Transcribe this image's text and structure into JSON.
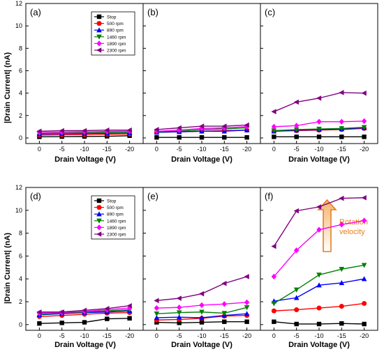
{
  "figure": {
    "xlabel": "Drain Voltage (V)",
    "ylabel": "|Drain Current| (nA)",
    "yticks": [
      "0",
      "2",
      "4",
      "6",
      "8",
      "10",
      "12"
    ],
    "xticks": [
      "0",
      "-5",
      "-10",
      "-15",
      "-20"
    ],
    "legend_entries": [
      "Stop",
      "500 rpm",
      "890 rpm",
      "1460 rpm",
      "1890 rpm",
      "2300 rpm"
    ],
    "annotation": {
      "line1": "Rotation",
      "line2": "velocity",
      "color": "#e67e22"
    }
  },
  "series_styles": [
    {
      "name": "Stop",
      "color": "#000000",
      "marker": "square"
    },
    {
      "name": "500 rpm",
      "color": "#ff0000",
      "marker": "circle"
    },
    {
      "name": "890 rpm",
      "color": "#0000ff",
      "marker": "triangle-up"
    },
    {
      "name": "1460 rpm",
      "color": "#008000",
      "marker": "triangle-down"
    },
    {
      "name": "1890 rpm",
      "color": "#ff00ff",
      "marker": "diamond"
    },
    {
      "name": "2300 rpm",
      "color": "#800080",
      "marker": "triangle-left"
    }
  ],
  "chart_data": [
    {
      "type": "line",
      "panel": "(a)",
      "x": [
        0,
        -5,
        -10,
        -15,
        -20
      ],
      "ylim": [
        -0.5,
        12
      ],
      "legend": "top-right",
      "series": [
        {
          "name": "Stop",
          "values": [
            0.1,
            0.12,
            0.13,
            0.15,
            0.2
          ]
        },
        {
          "name": "500 rpm",
          "values": [
            0.25,
            0.28,
            0.3,
            0.33,
            0.35
          ]
        },
        {
          "name": "890 rpm",
          "values": [
            0.35,
            0.38,
            0.4,
            0.42,
            0.45
          ]
        },
        {
          "name": "1460 rpm",
          "values": [
            0.4,
            0.43,
            0.45,
            0.48,
            0.5
          ]
        },
        {
          "name": "1890 rpm",
          "values": [
            0.5,
            0.52,
            0.55,
            0.58,
            0.6
          ]
        },
        {
          "name": "2300 rpm",
          "values": [
            0.6,
            0.65,
            0.65,
            0.7,
            0.7
          ]
        }
      ]
    },
    {
      "type": "line",
      "panel": "(b)",
      "x": [
        0,
        -5,
        -10,
        -15,
        -20
      ],
      "ylim": [
        -0.5,
        12
      ],
      "series": [
        {
          "name": "Stop",
          "values": [
            0.05,
            0.05,
            0.05,
            0.05,
            0.05
          ]
        },
        {
          "name": "500 rpm",
          "values": [
            0.5,
            0.55,
            0.6,
            0.65,
            0.7
          ]
        },
        {
          "name": "890 rpm",
          "values": [
            0.5,
            0.55,
            0.6,
            0.6,
            0.7
          ]
        },
        {
          "name": "1460 rpm",
          "values": [
            0.55,
            0.6,
            0.75,
            0.8,
            0.9
          ]
        },
        {
          "name": "1890 rpm",
          "values": [
            0.6,
            0.7,
            0.85,
            0.9,
            1.0
          ]
        },
        {
          "name": "2300 rpm",
          "values": [
            0.75,
            0.9,
            1.05,
            1.05,
            1.15
          ]
        }
      ]
    },
    {
      "type": "line",
      "panel": "(c)",
      "x": [
        0,
        -5,
        -10,
        -15,
        -20
      ],
      "ylim": [
        -0.5,
        12
      ],
      "series": [
        {
          "name": "Stop",
          "values": [
            0.1,
            0.1,
            0.1,
            0.1,
            0.1
          ]
        },
        {
          "name": "500 rpm",
          "values": [
            0.6,
            0.65,
            0.7,
            0.75,
            0.85
          ]
        },
        {
          "name": "890 rpm",
          "values": [
            0.6,
            0.7,
            0.75,
            0.8,
            0.9
          ]
        },
        {
          "name": "1460 rpm",
          "values": [
            0.65,
            0.75,
            0.8,
            0.85,
            0.95
          ]
        },
        {
          "name": "1890 rpm",
          "values": [
            1.0,
            1.1,
            1.45,
            1.45,
            1.5
          ]
        },
        {
          "name": "2300 rpm",
          "values": [
            2.35,
            3.2,
            3.55,
            4.05,
            4.0
          ]
        }
      ]
    },
    {
      "type": "line",
      "panel": "(d)",
      "x": [
        0,
        -5,
        -10,
        -15,
        -20
      ],
      "ylim": [
        -0.5,
        12
      ],
      "legend": "top-right",
      "series": [
        {
          "name": "Stop",
          "values": [
            0.1,
            0.15,
            0.2,
            0.5,
            0.55
          ]
        },
        {
          "name": "500 rpm",
          "values": [
            0.7,
            0.8,
            0.9,
            1.0,
            1.05
          ]
        },
        {
          "name": "890 rpm",
          "values": [
            0.85,
            0.95,
            1.05,
            1.1,
            1.2
          ]
        },
        {
          "name": "1460 rpm",
          "values": [
            0.9,
            1.0,
            1.1,
            1.2,
            1.3
          ]
        },
        {
          "name": "1890 rpm",
          "values": [
            1.0,
            1.05,
            1.15,
            1.3,
            1.45
          ]
        },
        {
          "name": "2300 rpm",
          "values": [
            1.1,
            1.1,
            1.25,
            1.4,
            1.65
          ]
        }
      ]
    },
    {
      "type": "line",
      "panel": "(e)",
      "x": [
        0,
        -5,
        -10,
        -15,
        -20
      ],
      "ylim": [
        -0.5,
        12
      ],
      "series": [
        {
          "name": "Stop",
          "values": [
            0.2,
            0.15,
            0.2,
            0.25,
            0.25
          ]
        },
        {
          "name": "500 rpm",
          "values": [
            0.4,
            0.45,
            0.55,
            0.75,
            0.8
          ]
        },
        {
          "name": "890 rpm",
          "values": [
            0.6,
            0.65,
            0.6,
            0.8,
            0.95
          ]
        },
        {
          "name": "1460 rpm",
          "values": [
            0.95,
            1.05,
            1.1,
            1.0,
            1.5
          ]
        },
        {
          "name": "1890 rpm",
          "values": [
            1.45,
            1.5,
            1.7,
            1.8,
            1.95
          ]
        },
        {
          "name": "2300 rpm",
          "values": [
            2.1,
            2.3,
            2.7,
            3.6,
            4.2
          ]
        }
      ]
    },
    {
      "type": "line",
      "panel": "(f)",
      "x": [
        0,
        -5,
        -10,
        -15,
        -20
      ],
      "ylim": [
        -0.5,
        12
      ],
      "series": [
        {
          "name": "Stop",
          "values": [
            0.25,
            0.05,
            0.05,
            0.1,
            0.05
          ]
        },
        {
          "name": "500 rpm",
          "values": [
            1.2,
            1.3,
            1.45,
            1.6,
            1.85
          ]
        },
        {
          "name": "890 rpm",
          "values": [
            2.05,
            2.35,
            3.45,
            3.65,
            4.0
          ]
        },
        {
          "name": "1460 rpm",
          "values": [
            1.85,
            3.05,
            4.35,
            4.85,
            5.2
          ]
        },
        {
          "name": "1890 rpm",
          "values": [
            4.2,
            6.5,
            8.3,
            8.75,
            9.1
          ]
        },
        {
          "name": "2300 rpm",
          "values": [
            6.85,
            9.95,
            10.3,
            11.05,
            11.1
          ]
        }
      ]
    }
  ]
}
